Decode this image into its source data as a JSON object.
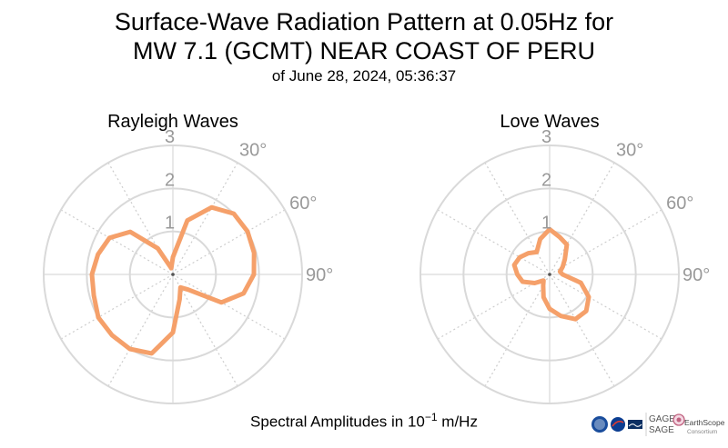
{
  "title": {
    "line1": "Surface-Wave Radiation Pattern at 0.05Hz for",
    "line2": "MW 7.1 (GCMT) NEAR COAST OF PERU",
    "line3": "of June 28, 2024, 05:36:37"
  },
  "footer": {
    "prefix": "Spectral Amplitudes in ",
    "base": "10",
    "exponent": "−1",
    "unit": " m/Hz"
  },
  "logos": {
    "gage": "GAGE",
    "sage": "SAGE",
    "earthscope": "EarthScope",
    "consortium": "Consortium"
  },
  "colors": {
    "pattern": "#f5a06a",
    "grid_solid": "#d9d9d9",
    "grid_dotted": "#cccccc",
    "tick_text": "#999999"
  },
  "chart_data": [
    {
      "type": "polar-line",
      "title": "Rayleigh Waves",
      "r_ticks": [
        1,
        2,
        3
      ],
      "r_max": 3,
      "angle_ticks": [
        "30°",
        "60°",
        "90°"
      ],
      "theta_deg": [
        0,
        15,
        30,
        45,
        60,
        75,
        90,
        105,
        120,
        135,
        150,
        165,
        180,
        195,
        210,
        225,
        240,
        255,
        270,
        285,
        300,
        315,
        330,
        345
      ],
      "r": [
        0.4,
        1.3,
        1.8,
        2.0,
        2.0,
        1.95,
        1.88,
        1.7,
        1.3,
        0.5,
        0.35,
        0.6,
        1.35,
        1.9,
        2.0,
        2.0,
        2.0,
        1.9,
        1.88,
        1.8,
        1.7,
        1.4,
        0.7,
        0.15
      ]
    },
    {
      "type": "polar-line",
      "title": "Love Waves",
      "r_ticks": [
        1,
        2,
        3
      ],
      "r_max": 3,
      "angle_ticks": [
        "30°",
        "60°",
        "90°"
      ],
      "theta_deg": [
        0,
        15,
        30,
        45,
        60,
        75,
        90,
        105,
        120,
        135,
        150,
        165,
        180,
        195,
        210,
        225,
        240,
        255,
        270,
        285,
        300,
        315,
        330,
        345
      ],
      "r": [
        1.05,
        0.9,
        0.8,
        0.5,
        0.35,
        0.25,
        0.3,
        0.75,
        1.05,
        1.2,
        1.2,
        1.0,
        0.8,
        0.55,
        0.3,
        0.2,
        0.4,
        0.65,
        0.75,
        0.85,
        0.8,
        0.7,
        0.6,
        0.85
      ]
    }
  ]
}
